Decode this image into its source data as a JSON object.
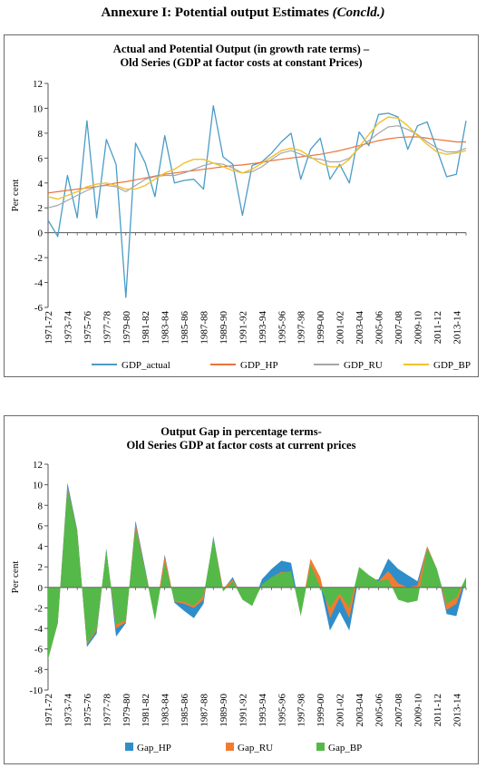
{
  "page": {
    "heading": "Annexure I: Potential output Estimates",
    "heading_suffix": "(Concld.)"
  },
  "chart_data": [
    {
      "type": "line",
      "title_line1": "Actual and Potential Output (in growth rate terms) –",
      "title_line2": "Old Series (GDP at factor costs at constant Prices)",
      "ylabel": "Per cent",
      "ylim": [
        -6,
        12
      ],
      "yticks": [
        -6,
        -4,
        -2,
        0,
        2,
        4,
        6,
        8,
        10,
        12
      ],
      "x": [
        "1971-72",
        "1972-73",
        "1973-74",
        "1974-75",
        "1975-76",
        "1976-77",
        "1977-78",
        "1978-79",
        "1979-80",
        "1980-81",
        "1981-82",
        "1982-83",
        "1983-84",
        "1984-85",
        "1985-86",
        "1986-87",
        "1987-88",
        "1988-89",
        "1989-90",
        "1990-91",
        "1991-92",
        "1992-93",
        "1993-94",
        "1994-95",
        "1995-96",
        "1996-97",
        "1997-98",
        "1998-99",
        "1999-00",
        "2000-01",
        "2001-02",
        "2002-03",
        "2003-04",
        "2004-05",
        "2005-06",
        "2006-07",
        "2007-08",
        "2008-09",
        "2009-10",
        "2010-11",
        "2011-12",
        "2012-13",
        "2013-14",
        "2014-15"
      ],
      "xtick_labels": [
        "1971-72",
        "1973-74",
        "1975-76",
        "1977-78",
        "1979-80",
        "1981-82",
        "1983-84",
        "1985-86",
        "1987-88",
        "1989-90",
        "1991-92",
        "1993-94",
        "1995-96",
        "1997-98",
        "1999-00",
        "2001-02",
        "2003-04",
        "2005-06",
        "2007-08",
        "2009-10",
        "2011-12",
        "2013-14"
      ],
      "legend_position": "bottom",
      "series": [
        {
          "name": "GDP_actual",
          "color": "#4a9cc7",
          "width": 1.3,
          "values": [
            1.0,
            -0.3,
            4.6,
            1.2,
            9.0,
            1.2,
            7.5,
            5.5,
            -5.2,
            7.2,
            5.6,
            2.9,
            7.8,
            4.0,
            4.2,
            4.3,
            3.5,
            10.2,
            6.1,
            5.5,
            1.4,
            5.4,
            5.7,
            6.4,
            7.3,
            8.0,
            4.3,
            6.7,
            7.6,
            4.3,
            5.5,
            4.0,
            8.1,
            7.0,
            9.5,
            9.6,
            9.3,
            6.7,
            8.6,
            8.9,
            6.7,
            4.5,
            4.7,
            9.0
          ]
        },
        {
          "name": "GDP_HP",
          "color": "#e8743b",
          "width": 1.2,
          "values": [
            3.2,
            3.3,
            3.4,
            3.5,
            3.6,
            3.7,
            3.85,
            4.0,
            4.1,
            4.25,
            4.4,
            4.55,
            4.7,
            4.8,
            4.9,
            5.0,
            5.1,
            5.2,
            5.3,
            5.4,
            5.45,
            5.55,
            5.65,
            5.8,
            5.9,
            6.0,
            6.1,
            6.2,
            6.3,
            6.45,
            6.6,
            6.8,
            7.0,
            7.2,
            7.4,
            7.55,
            7.65,
            7.7,
            7.7,
            7.6,
            7.5,
            7.4,
            7.3,
            7.3
          ]
        },
        {
          "name": "GDP_RU",
          "color": "#a6a6a6",
          "width": 1.2,
          "values": [
            2.0,
            2.2,
            2.6,
            3.0,
            3.4,
            3.7,
            3.8,
            3.7,
            3.3,
            3.8,
            4.3,
            4.5,
            4.6,
            4.6,
            4.8,
            5.1,
            5.4,
            5.6,
            5.5,
            5.2,
            4.8,
            4.9,
            5.3,
            5.9,
            6.4,
            6.6,
            6.3,
            6.0,
            5.9,
            5.7,
            5.7,
            6.0,
            6.8,
            7.4,
            8.0,
            8.5,
            8.6,
            8.3,
            7.9,
            7.3,
            6.8,
            6.5,
            6.5,
            6.8
          ]
        },
        {
          "name": "GDP_BP",
          "color": "#f2c12e",
          "width": 1.4,
          "values": [
            2.9,
            2.7,
            3.0,
            3.3,
            3.7,
            3.9,
            4.0,
            3.8,
            3.5,
            3.5,
            3.8,
            4.3,
            4.8,
            5.1,
            5.6,
            5.9,
            5.9,
            5.6,
            5.3,
            5.0,
            4.8,
            5.1,
            5.6,
            6.1,
            6.6,
            6.8,
            6.6,
            6.1,
            5.6,
            5.3,
            5.3,
            5.9,
            6.9,
            7.9,
            8.8,
            9.3,
            9.2,
            8.6,
            7.8,
            7.1,
            6.5,
            6.3,
            6.4,
            6.6
          ]
        }
      ]
    },
    {
      "type": "area",
      "title_line1": "Output Gap in percentage terms-",
      "title_line2": "Old Series GDP at factor costs at current prices",
      "ylabel": "Per cent",
      "ylim": [
        -10,
        12
      ],
      "yticks": [
        -10,
        -8,
        -6,
        -4,
        -2,
        0,
        2,
        4,
        6,
        8,
        10,
        12
      ],
      "x": [
        "1971-72",
        "1972-73",
        "1973-74",
        "1974-75",
        "1975-76",
        "1976-77",
        "1977-78",
        "1978-79",
        "1979-80",
        "1980-81",
        "1981-82",
        "1982-83",
        "1983-84",
        "1984-85",
        "1985-86",
        "1986-87",
        "1987-88",
        "1988-89",
        "1989-90",
        "1990-91",
        "1991-92",
        "1992-93",
        "1993-94",
        "1994-95",
        "1995-96",
        "1996-97",
        "1997-98",
        "1998-99",
        "1999-00",
        "2000-01",
        "2001-02",
        "2002-03",
        "2003-04",
        "2004-05",
        "2005-06",
        "2006-07",
        "2007-08",
        "2008-09",
        "2009-10",
        "2010-11",
        "2011-12",
        "2012-13",
        "2013-14",
        "2014-15"
      ],
      "xtick_labels": [
        "1971-72",
        "1973-74",
        "1975-76",
        "1977-78",
        "1979-80",
        "1981-82",
        "1983-84",
        "1985-86",
        "1987-88",
        "1989-90",
        "1991-92",
        "1993-94",
        "1995-96",
        "1997-98",
        "1999-00",
        "2001-02",
        "2003-04",
        "2005-06",
        "2007-08",
        "2009-10",
        "2011-12",
        "2013-14"
      ],
      "legend_position": "bottom",
      "series": [
        {
          "name": "Gap_HP",
          "color": "#2e8ec9",
          "values": [
            -7.0,
            -3.5,
            10.2,
            5.6,
            -5.8,
            -4.5,
            3.8,
            -4.8,
            -3.5,
            6.5,
            1.8,
            -3.0,
            3.2,
            -1.5,
            -2.3,
            -3.0,
            -1.6,
            5.0,
            -0.2,
            1.0,
            -1.0,
            -1.8,
            0.8,
            1.8,
            2.6,
            2.4,
            -2.5,
            2.6,
            0.2,
            -4.2,
            -2.4,
            -4.2,
            1.2,
            0.6,
            0.8,
            2.8,
            1.8,
            1.2,
            0.6,
            4.0,
            1.8,
            -2.6,
            -2.8,
            0.8
          ]
        },
        {
          "name": "Gap_RU",
          "color": "#f07c32",
          "values": [
            -7.0,
            -3.5,
            9.8,
            5.5,
            -5.6,
            -4.2,
            3.6,
            -4.0,
            -3.4,
            6.2,
            1.6,
            -2.8,
            3.0,
            -1.4,
            -1.6,
            -2.0,
            -1.2,
            4.8,
            -0.1,
            0.8,
            -1.0,
            -1.6,
            0.2,
            1.0,
            1.5,
            1.5,
            -2.5,
            2.8,
            1.0,
            -3.0,
            -1.0,
            -3.0,
            1.6,
            0.8,
            0.6,
            1.6,
            0.4,
            0.0,
            0.2,
            4.0,
            1.8,
            -2.2,
            -1.6,
            0.8
          ]
        },
        {
          "name": "Gap_BP",
          "color": "#54b948",
          "values": [
            -7.0,
            -3.5,
            9.6,
            5.4,
            -5.5,
            -4.0,
            3.6,
            -3.6,
            -3.2,
            5.8,
            1.5,
            -3.2,
            2.4,
            -1.3,
            -1.4,
            -1.8,
            -0.8,
            4.8,
            -0.4,
            0.6,
            -1.2,
            -1.8,
            0.3,
            1.0,
            1.4,
            1.6,
            -2.8,
            2.2,
            0.0,
            -2.0,
            -0.6,
            -2.0,
            2.0,
            1.2,
            0.6,
            0.8,
            -1.2,
            -1.5,
            -1.3,
            3.8,
            1.8,
            -1.6,
            -1.0,
            1.0
          ]
        }
      ]
    }
  ]
}
